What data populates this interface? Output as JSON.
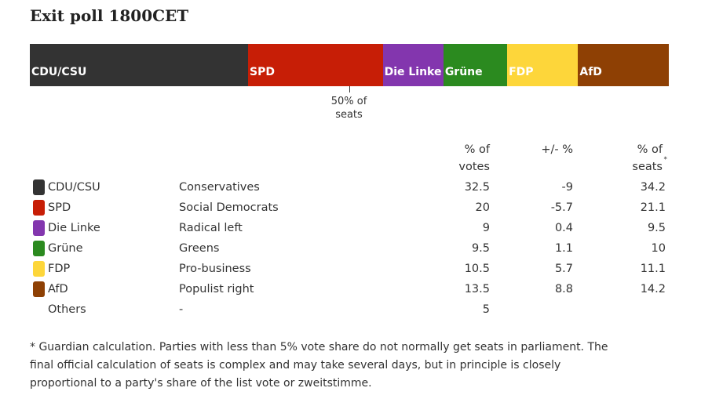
{
  "title": "Exit poll 1800CET",
  "bar": {
    "xlim": [
      0,
      100
    ],
    "marker": {
      "value": 50,
      "label": "50% of seats"
    }
  },
  "table": {
    "headers": {
      "votes": "% of votes",
      "change": "+/- %",
      "seats": "% of seats",
      "seats_note_mark": "*"
    },
    "rows": [
      {
        "party": "CDU/CSU",
        "description": "Conservatives",
        "votes": 32.5,
        "change": -9,
        "seats": 34.2,
        "color": "#333333"
      },
      {
        "party": "SPD",
        "description": "Social Democrats",
        "votes": 20,
        "change": -5.7,
        "seats": 21.1,
        "color": "#c71e06"
      },
      {
        "party": "Die Linke",
        "description": "Radical left",
        "votes": 9,
        "change": 0.4,
        "seats": 9.5,
        "color": "#8336ae"
      },
      {
        "party": "Grüne",
        "description": "Greens",
        "votes": 9.5,
        "change": 1.1,
        "seats": 10,
        "color": "#2b8a1f"
      },
      {
        "party": "FDP",
        "description": "Pro-business",
        "votes": 10.5,
        "change": 5.7,
        "seats": 11.1,
        "color": "#fdd63a"
      },
      {
        "party": "AfD",
        "description": "Populist right",
        "votes": 13.5,
        "change": 8.8,
        "seats": 14.2,
        "color": "#8e4004"
      },
      {
        "party": "Others",
        "description": "-",
        "votes": 5,
        "change": null,
        "seats": null,
        "color": null
      }
    ]
  },
  "footnote": "* Guardian calculation. Parties with less than 5% vote share do not normally get seats in parliament. The final official calculation of seats is complex and may take several days, but in principle is closely proportional to a party's share of the list vote or zweitstimme."
}
